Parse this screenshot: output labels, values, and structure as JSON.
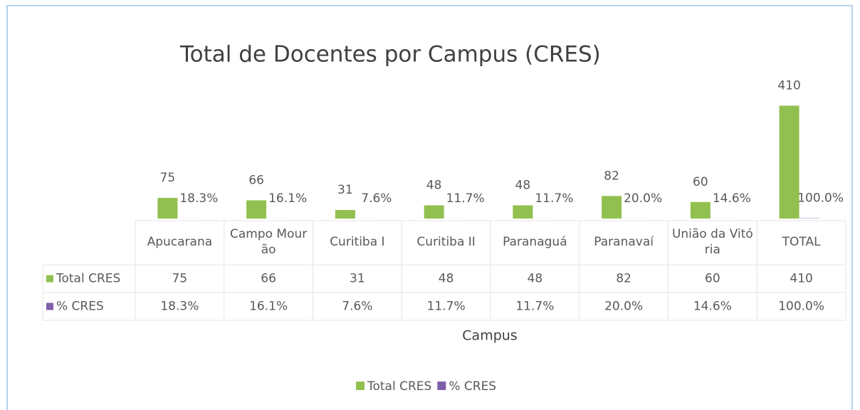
{
  "chart_data": {
    "type": "bar",
    "title": "Total de Docentes por Campus (CRES)",
    "x_label": "Campus",
    "categories": [
      "Apucarana",
      "Campo Mourão",
      "Curitiba I",
      "Curitiba II",
      "Paranaguá",
      "Paranavaí",
      "União da Vitória",
      "TOTAL"
    ],
    "series": [
      {
        "name": "Total CRES",
        "color": "#92c050",
        "values": [
          75,
          66,
          31,
          48,
          48,
          82,
          60,
          410
        ]
      },
      {
        "name": "% CRES",
        "color": "#7f5fa8",
        "values": [
          0.183,
          0.161,
          0.076,
          0.117,
          0.117,
          0.2,
          0.146,
          1.0
        ],
        "value_labels": [
          "18.3%",
          "16.1%",
          "7.6%",
          "11.7%",
          "11.7%",
          "20.0%",
          "14.6%",
          "100.0%"
        ]
      }
    ],
    "ylim": [
      0,
      450
    ],
    "legend": "bottom"
  }
}
